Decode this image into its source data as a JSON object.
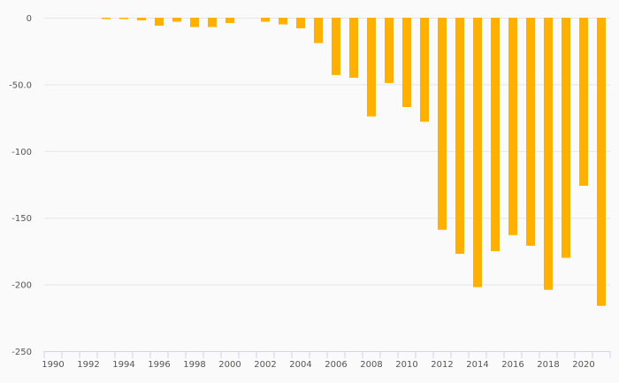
{
  "chart_data": {
    "type": "bar",
    "x": [
      1990,
      1991,
      1992,
      1993,
      1994,
      1995,
      1996,
      1997,
      1998,
      1999,
      2000,
      2001,
      2002,
      2003,
      2004,
      2005,
      2006,
      2007,
      2008,
      2009,
      2010,
      2011,
      2012,
      2013,
      2014,
      2015,
      2016,
      2017,
      2018,
      2019,
      2020,
      2021
    ],
    "values": [
      0,
      0,
      0,
      -1,
      -1,
      -2,
      -6,
      -3,
      -7,
      -7,
      -4,
      0,
      -3,
      -5,
      -8,
      -19,
      -43,
      -45,
      -74,
      -49,
      -67,
      -78,
      -159,
      -177,
      -202,
      -175,
      -163,
      -171,
      -204,
      -180,
      -126,
      -216
    ],
    "y_ticks": [
      0,
      -50,
      -100,
      -150,
      -200,
      -250
    ],
    "y_tick_labels": [
      "0",
      "-50.0",
      "-100",
      "-150",
      "-200",
      "-250"
    ],
    "x_tick_labels": [
      "1990",
      "1992",
      "1994",
      "1996",
      "1998",
      "2000",
      "2002",
      "2004",
      "2006",
      "2008",
      "2010",
      "2012",
      "2014",
      "2016",
      "2018",
      "2020"
    ],
    "ylim": [
      -250,
      0
    ],
    "xlim": [
      1989.5,
      2021.5
    ],
    "grid": true,
    "colors": {
      "bar": "#ffb000",
      "grid": "#e6e6e6",
      "axis": "#ccd6eb"
    }
  }
}
